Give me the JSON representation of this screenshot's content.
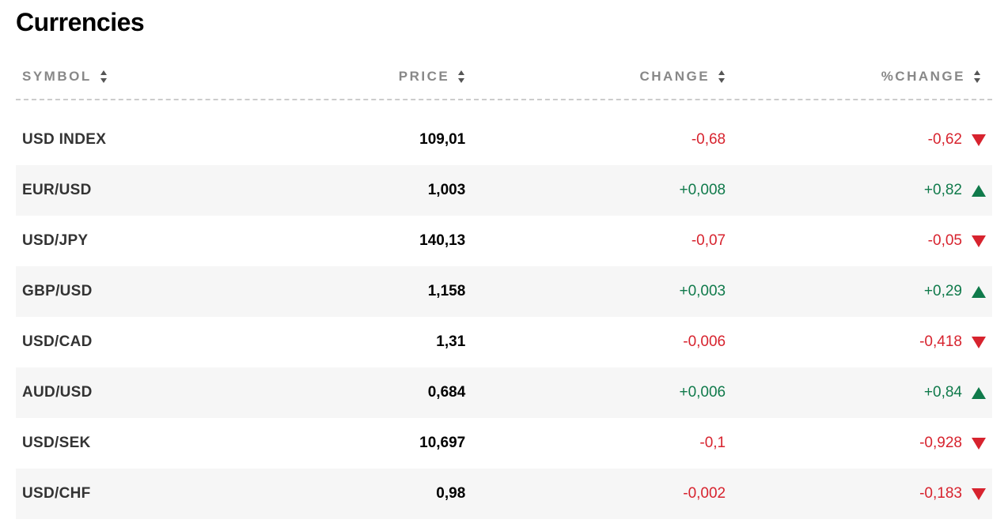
{
  "title": "Currencies",
  "colors": {
    "text_primary": "#000000",
    "text_secondary": "#333333",
    "header_text": "#888888",
    "down": "#d7232e",
    "up": "#107a4b",
    "stripe_bg": "#f6f6f6",
    "sort_arrow": "#555555",
    "divider": "#cccccc"
  },
  "typography": {
    "title_fontsize": 32,
    "title_weight": 900,
    "header_fontsize": 17,
    "header_letterspacing": 2.5,
    "cell_fontsize": 19
  },
  "table": {
    "type": "table",
    "columns": [
      {
        "key": "symbol",
        "label": "SYMBOL",
        "align": "left",
        "width_pct": 28
      },
      {
        "key": "price",
        "label": "PRICE",
        "align": "right",
        "width_pct": 18
      },
      {
        "key": "change",
        "label": "CHANGE",
        "align": "right",
        "width_pct": 27
      },
      {
        "key": "pct_change",
        "label": "%CHANGE",
        "align": "right",
        "width_pct": 27
      }
    ],
    "rows": [
      {
        "symbol": "USD INDEX",
        "price": "109,01",
        "change": "-0,68",
        "pct_change": "-0,62",
        "direction": "down"
      },
      {
        "symbol": "EUR/USD",
        "price": "1,003",
        "change": "+0,008",
        "pct_change": "+0,82",
        "direction": "up"
      },
      {
        "symbol": "USD/JPY",
        "price": "140,13",
        "change": "-0,07",
        "pct_change": "-0,05",
        "direction": "down"
      },
      {
        "symbol": "GBP/USD",
        "price": "1,158",
        "change": "+0,003",
        "pct_change": "+0,29",
        "direction": "up"
      },
      {
        "symbol": "USD/CAD",
        "price": "1,31",
        "change": "-0,006",
        "pct_change": "-0,418",
        "direction": "down"
      },
      {
        "symbol": "AUD/USD",
        "price": "0,684",
        "change": "+0,006",
        "pct_change": "+0,84",
        "direction": "up"
      },
      {
        "symbol": "USD/SEK",
        "price": "10,697",
        "change": "-0,1",
        "pct_change": "-0,928",
        "direction": "down"
      },
      {
        "symbol": "USD/CHF",
        "price": "0,98",
        "change": "-0,002",
        "pct_change": "-0,183",
        "direction": "down"
      }
    ]
  }
}
